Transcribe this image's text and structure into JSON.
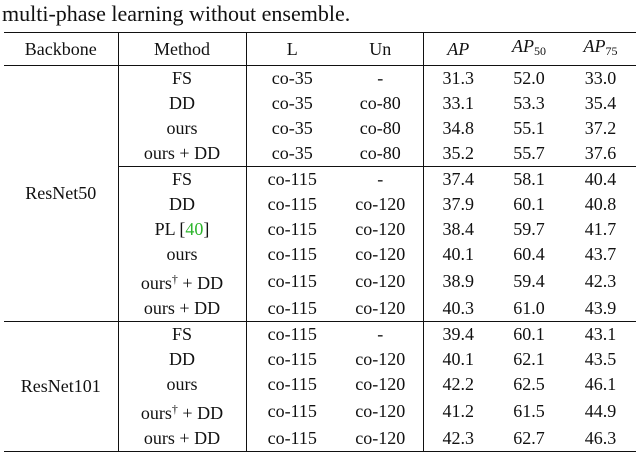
{
  "caption": "multi-phase learning without ensemble.",
  "headers": {
    "backbone": "Backbone",
    "method": "Method",
    "l": "L",
    "un": "Un",
    "ap": "AP",
    "ap50_main": "AP",
    "ap50_sub": "50",
    "ap75_main": "AP",
    "ap75_sub": "75"
  },
  "groups": [
    {
      "backbone": "ResNet50",
      "rows": [
        {
          "method": "FS",
          "l": "co-35",
          "un": "-",
          "ap": "31.3",
          "ap50": "52.0",
          "ap75": "33.0",
          "bold": false
        },
        {
          "method": "DD",
          "l": "co-35",
          "un": "co-80",
          "ap": "33.1",
          "ap50": "53.3",
          "ap75": "35.4",
          "bold": false
        },
        {
          "method": "ours",
          "l": "co-35",
          "un": "co-80",
          "ap": "34.8",
          "ap50": "55.1",
          "ap75": "37.2",
          "bold": true
        },
        {
          "method": "ours + DD",
          "l": "co-35",
          "un": "co-80",
          "ap": "35.2",
          "ap50": "55.7",
          "ap75": "37.6",
          "bold": true
        },
        {
          "method": "FS",
          "l": "co-115",
          "un": "-",
          "ap": "37.4",
          "ap50": "58.1",
          "ap75": "40.4",
          "bold": false
        },
        {
          "method": "DD",
          "l": "co-115",
          "un": "co-120",
          "ap": "37.9",
          "ap50": "60.1",
          "ap75": "40.8",
          "bold": false
        },
        {
          "method": "PL",
          "cite": "40",
          "l": "co-115",
          "un": "co-120",
          "ap": "38.4",
          "ap50": "59.7",
          "ap75": "41.7",
          "bold": false
        },
        {
          "method": "ours",
          "l": "co-115",
          "un": "co-120",
          "ap": "40.1",
          "ap50": "60.4",
          "ap75": "43.7",
          "bold": true
        },
        {
          "method": "ours",
          "dagger": "†",
          "method_suffix": " + DD",
          "l": "co-115",
          "un": "co-120",
          "ap": "38.9",
          "ap50": "59.4",
          "ap75": "42.3",
          "bold": false
        },
        {
          "method": "ours + DD",
          "l": "co-115",
          "un": "co-120",
          "ap": "40.3",
          "ap50": "61.0",
          "ap75": "43.9",
          "bold": true
        }
      ]
    },
    {
      "backbone": "ResNet101",
      "rows": [
        {
          "method": "FS",
          "l": "co-115",
          "un": "-",
          "ap": "39.4",
          "ap50": "60.1",
          "ap75": "43.1",
          "bold": false
        },
        {
          "method": "DD",
          "l": "co-115",
          "un": "co-120",
          "ap": "40.1",
          "ap50": "62.1",
          "ap75": "43.5",
          "bold": false
        },
        {
          "method": "ours",
          "l": "co-115",
          "un": "co-120",
          "ap": "42.2",
          "ap50": "62.5",
          "ap75": "46.1",
          "bold": true
        },
        {
          "method": "ours",
          "dagger": "†",
          "method_suffix": " + DD",
          "l": "co-115",
          "un": "co-120",
          "ap": "41.2",
          "ap50": "61.5",
          "ap75": "44.9",
          "bold": false
        },
        {
          "method": "ours + DD",
          "l": "co-115",
          "un": "co-120",
          "ap": "42.3",
          "ap50": "62.7",
          "ap75": "46.3",
          "bold": true
        }
      ]
    }
  ]
}
